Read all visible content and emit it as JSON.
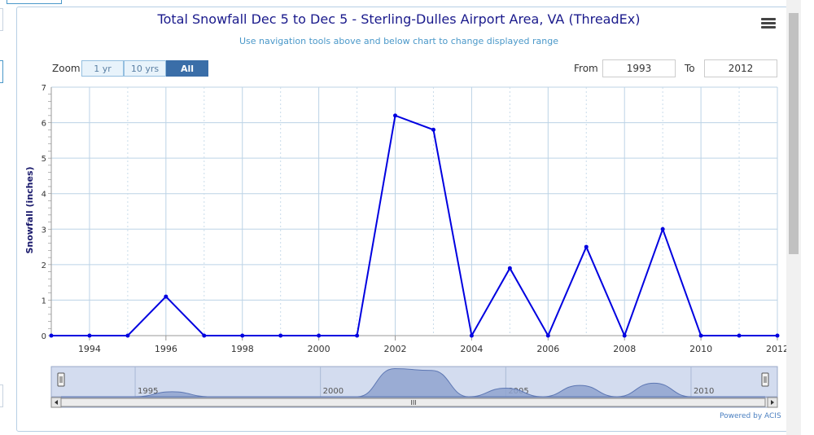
{
  "chart_data": {
    "type": "line",
    "title": "Total Snowfall Dec 5 to Dec 5 - Sterling-Dulles Airport Area, VA (ThreadEx)",
    "subtitle": "Use navigation tools above and below chart to change displayed range",
    "ylabel": "Snowfall (inches)",
    "xlabel": "",
    "x": [
      1993,
      1994,
      1995,
      1996,
      1997,
      1998,
      1999,
      2000,
      2001,
      2002,
      2003,
      2004,
      2005,
      2006,
      2007,
      2008,
      2009,
      2010,
      2011,
      2012
    ],
    "series": [
      {
        "name": "",
        "values": [
          0,
          0,
          0,
          1.1,
          0,
          0,
          0,
          0,
          0,
          6.2,
          5.8,
          0,
          1.9,
          0,
          2.5,
          0,
          3.0,
          0,
          0,
          0
        ]
      }
    ],
    "xlim": [
      1993,
      2012
    ],
    "ylim": [
      0,
      7
    ],
    "yticks": [
      "0",
      "1",
      "2",
      "3",
      "4",
      "5",
      "6",
      "7"
    ],
    "xticks": [
      "1994",
      "1996",
      "1998",
      "2000",
      "2002",
      "2004",
      "2006",
      "2008",
      "2010",
      "2012"
    ],
    "navigator_ticks": [
      "1995",
      "2000",
      "2005",
      "2010"
    ],
    "grid": true,
    "legend": "none",
    "line_color": "#0000e0"
  },
  "toolbar": {
    "zoom_label": "Zoom",
    "zoom_buttons": [
      "1 yr",
      "10 yrs",
      "All"
    ],
    "active_zoom": "All",
    "from_label": "From",
    "from_value": "1993",
    "to_label": "To",
    "to_value": "2012"
  },
  "navigator": {
    "grip_label": "III"
  },
  "credits": "Powered by ACIS",
  "icons": {
    "menu": "hamburger-menu-icon"
  }
}
